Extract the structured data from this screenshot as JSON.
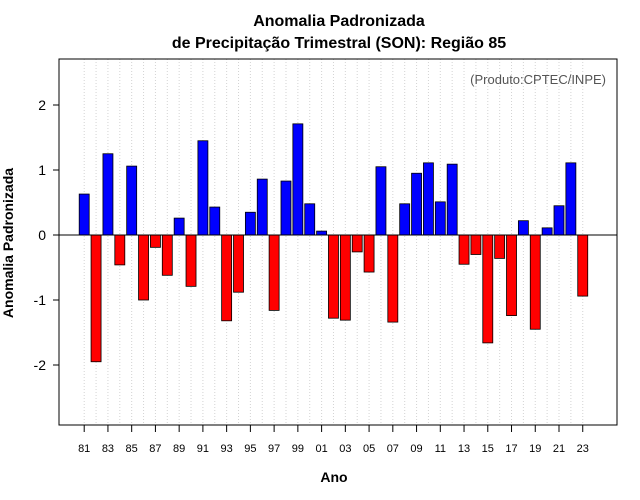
{
  "chart_data": {
    "type": "bar",
    "title_line1": "Anomalia Padronizada",
    "title_line2": "de Precipitação Trimestral (SON): Região 85",
    "xlabel": "Ano",
    "ylabel": "Anomalia Padronizada",
    "credit": "(Produto:CPTEC/INPE)",
    "ylim": [
      -2.9,
      2.7
    ],
    "yticks": [
      "-2",
      "-1",
      "0",
      "1",
      "2"
    ],
    "ytick_values": [
      -2,
      -1,
      0,
      1,
      2
    ],
    "categories": [
      "81",
      "82",
      "83",
      "84",
      "85",
      "86",
      "87",
      "88",
      "89",
      "90",
      "91",
      "92",
      "93",
      "94",
      "95",
      "96",
      "97",
      "98",
      "99",
      "00",
      "01",
      "02",
      "03",
      "04",
      "05",
      "06",
      "07",
      "08",
      "09",
      "10",
      "11",
      "12",
      "13",
      "14",
      "15",
      "16",
      "17",
      "18",
      "19",
      "20",
      "21",
      "22",
      "23"
    ],
    "xtick_labels": [
      "81",
      "83",
      "85",
      "87",
      "89",
      "91",
      "93",
      "95",
      "97",
      "99",
      "01",
      "03",
      "05",
      "07",
      "09",
      "11",
      "13",
      "15",
      "17",
      "19",
      "21",
      "23"
    ],
    "values": [
      0.63,
      -1.95,
      1.25,
      -0.46,
      1.06,
      -1.0,
      -0.19,
      -0.62,
      0.26,
      -0.79,
      1.45,
      0.43,
      -1.32,
      -0.88,
      0.35,
      0.86,
      -1.16,
      0.83,
      1.71,
      0.48,
      0.06,
      -1.28,
      -1.31,
      -0.26,
      -0.57,
      1.05,
      -1.34,
      0.48,
      0.95,
      1.11,
      0.51,
      1.09,
      -0.45,
      -0.3,
      -1.66,
      -0.36,
      -1.24,
      0.22,
      -1.45,
      0.11,
      0.45,
      1.11,
      -0.94
    ],
    "colors": {
      "positive": "#0000ff",
      "negative": "#ff0000",
      "outline": "#000000",
      "grid": "#d3d3d3"
    }
  }
}
